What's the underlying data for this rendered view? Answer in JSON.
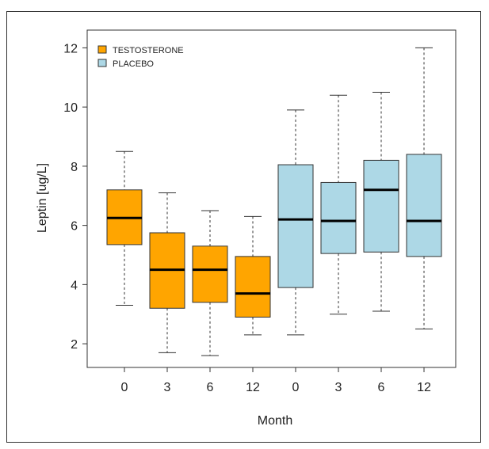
{
  "chart_data": {
    "type": "boxplot",
    "title": "",
    "xlabel": "Month",
    "ylabel": "Leptin [ug/L]",
    "ylim": [
      1.2,
      12.6
    ],
    "yticks": [
      2,
      4,
      6,
      8,
      10,
      12
    ],
    "legend_position": "top-left",
    "series": [
      {
        "name": "TESTOSTERONE",
        "color": "#FFA500"
      },
      {
        "name": "PLACEBO",
        "color": "#ADD8E6"
      }
    ],
    "categories": [
      "0",
      "3",
      "6",
      "12",
      "0",
      "3",
      "6",
      "12"
    ],
    "boxes": [
      {
        "series": "TESTOSTERONE",
        "month": "0",
        "min": 3.3,
        "q1": 5.35,
        "median": 6.25,
        "q3": 7.2,
        "max": 8.5
      },
      {
        "series": "TESTOSTERONE",
        "month": "3",
        "min": 1.7,
        "q1": 3.2,
        "median": 4.5,
        "q3": 5.75,
        "max": 7.1
      },
      {
        "series": "TESTOSTERONE",
        "month": "6",
        "min": 1.6,
        "q1": 3.4,
        "median": 4.5,
        "q3": 5.3,
        "max": 6.5
      },
      {
        "series": "TESTOSTERONE",
        "month": "12",
        "min": 2.3,
        "q1": 2.9,
        "median": 3.7,
        "q3": 4.95,
        "max": 6.3
      },
      {
        "series": "PLACEBO",
        "month": "0",
        "min": 2.3,
        "q1": 3.9,
        "median": 6.2,
        "q3": 8.05,
        "max": 9.9
      },
      {
        "series": "PLACEBO",
        "month": "3",
        "min": 3.0,
        "q1": 5.05,
        "median": 6.15,
        "q3": 7.45,
        "max": 10.4
      },
      {
        "series": "PLACEBO",
        "month": "6",
        "min": 3.1,
        "q1": 5.1,
        "median": 7.2,
        "q3": 8.2,
        "max": 10.5
      },
      {
        "series": "PLACEBO",
        "month": "12",
        "min": 2.5,
        "q1": 4.95,
        "median": 6.15,
        "q3": 8.4,
        "max": 12.0
      }
    ]
  }
}
